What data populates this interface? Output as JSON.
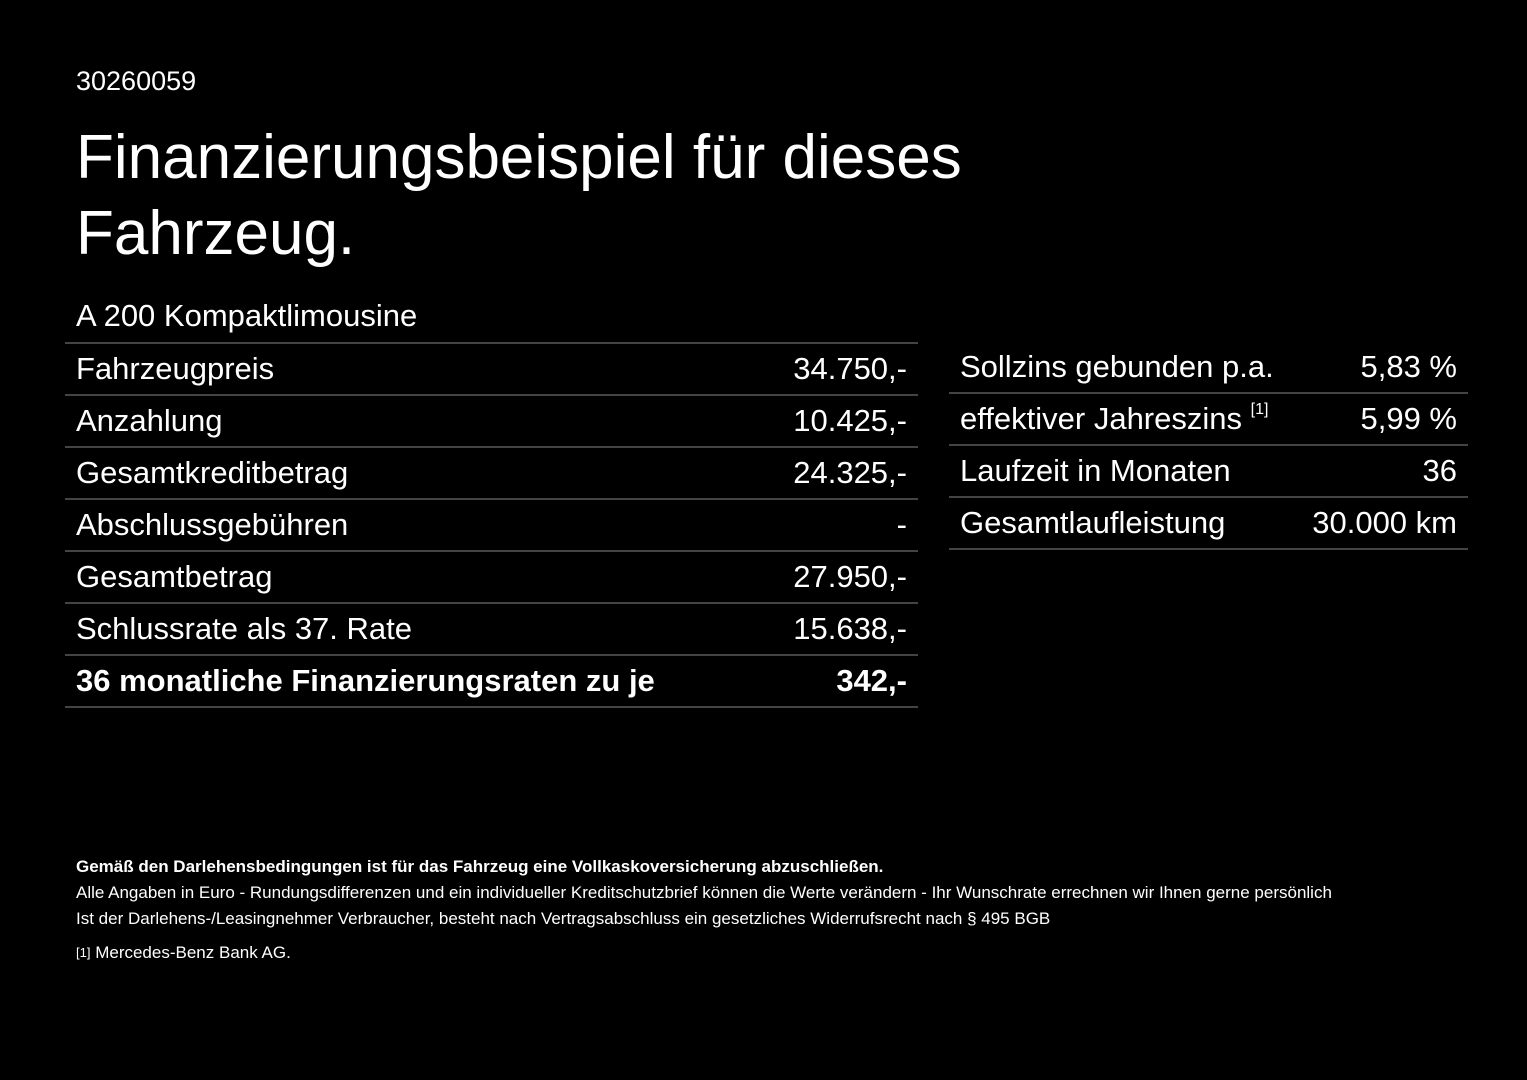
{
  "header": {
    "id": "30260059",
    "title": "Finanzierungsbeispiel für dieses Fahrzeug."
  },
  "model": "A 200 Kompaktlimousine",
  "left_table": {
    "rows": [
      [
        "Fahrzeugpreis",
        "34.750,-"
      ],
      [
        "Anzahlung",
        "10.425,-"
      ],
      [
        "Gesamtkreditbetrag",
        "24.325,-"
      ],
      [
        "Abschlussgebühren",
        "-"
      ],
      [
        "Gesamtbetrag",
        "27.950,-"
      ],
      [
        "Schlussrate als 37. Rate",
        "15.638,-"
      ],
      [
        "36 monatliche Finanzierungsraten zu je",
        "342,-"
      ]
    ]
  },
  "right_table": {
    "rows": [
      [
        "Sollzins gebunden p.a.",
        "5,83 %"
      ],
      [
        "effektiver Jahreszins",
        "5,99 %"
      ],
      [
        "Laufzeit in Monaten",
        "36"
      ],
      [
        "Gesamtlaufleistung",
        "30.000 km"
      ]
    ],
    "footnote_ref": "[1]"
  },
  "footer": {
    "bold": "Gemäß den Darlehensbedingungen ist für das Fahrzeug eine Vollkaskoversicherung abzuschließen.",
    "lines": [
      "Alle Angaben in Euro - Rundungsdifferenzen und ein individueller Kreditschutzbrief können die Werte verändern - Ihr Wunschrate errechnen wir Ihnen gerne persönlich",
      "Ist der Darlehens-/Leasingnehmer Verbraucher, besteht nach Vertragsabschluss ein gesetzliches Widerrufsrecht nach § 495 BGB"
    ],
    "footnote_mark": "[1]",
    "footnote_text": "Mercedes-Benz Bank AG."
  }
}
